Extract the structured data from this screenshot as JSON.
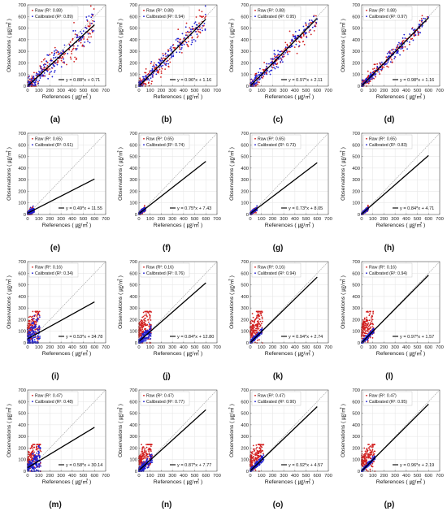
{
  "figure": {
    "style": {
      "raw_color": "#d21f1f",
      "calibrated_color": "#1f1fd2",
      "fit_line_color": "#000000",
      "identity_line_color": "#9a9a9a",
      "grid": true
    }
  },
  "chart_data": [
    {
      "panel_label": "(a)",
      "type": "scatter",
      "xlabel": "References ( ㎍/㎥ )",
      "ylabel": "Observations ( ㎍/㎥ )",
      "xlim": [
        0,
        700
      ],
      "ylim": [
        0,
        700
      ],
      "xticks": [
        0,
        100,
        200,
        300,
        400,
        500,
        600,
        700
      ],
      "yticks": [
        0,
        100,
        200,
        300,
        400,
        500,
        600,
        700
      ],
      "legend_position": "top-left",
      "series": [
        {
          "name": "Raw",
          "r2_label": "(R²: 0.88)",
          "r2": 0.88
        },
        {
          "name": "Calibrated",
          "r2_label": "(R²: 0.89)",
          "r2": 0.89
        }
      ],
      "fit": {
        "slope": 0.88,
        "intercept": 0.71,
        "label": "y = 0.88*x + 0.71"
      },
      "point_cloud": {
        "x_range": [
          0,
          600
        ],
        "spread": 90
      }
    },
    {
      "panel_label": "(b)",
      "type": "scatter",
      "xlabel": "References ( ㎍/㎥ )",
      "ylabel": "Observations ( ㎍/㎥ )",
      "xlim": [
        0,
        700
      ],
      "ylim": [
        0,
        700
      ],
      "xticks": [
        0,
        100,
        200,
        300,
        400,
        500,
        600,
        700
      ],
      "yticks": [
        0,
        100,
        200,
        300,
        400,
        500,
        600,
        700
      ],
      "legend_position": "top-left",
      "series": [
        {
          "name": "Raw",
          "r2_label": "(R²: 0.88)",
          "r2": 0.88
        },
        {
          "name": "Calibrated",
          "r2_label": "(R²: 0.94)",
          "r2": 0.94
        }
      ],
      "fit": {
        "slope": 0.96,
        "intercept": 1.16,
        "label": "y = 0.96*x + 1.16"
      },
      "point_cloud": {
        "x_range": [
          0,
          600
        ],
        "spread": 70
      }
    },
    {
      "panel_label": "(c)",
      "type": "scatter",
      "xlabel": "References ( ㎍/㎥ )",
      "ylabel": "Observations ( ㎍/㎥ )",
      "xlim": [
        0,
        700
      ],
      "ylim": [
        0,
        700
      ],
      "xticks": [
        0,
        100,
        200,
        300,
        400,
        500,
        600,
        700
      ],
      "yticks": [
        0,
        100,
        200,
        300,
        400,
        500,
        600,
        700
      ],
      "legend_position": "top-left",
      "series": [
        {
          "name": "Raw",
          "r2_label": "(R²: 0.88)",
          "r2": 0.88
        },
        {
          "name": "Calibrated",
          "r2_label": "(R²: 0.95)",
          "r2": 0.95
        }
      ],
      "fit": {
        "slope": 0.97,
        "intercept": 2.11,
        "label": "y = 0.97*x + 2.11"
      },
      "point_cloud": {
        "x_range": [
          0,
          600
        ],
        "spread": 65
      }
    },
    {
      "panel_label": "(d)",
      "type": "scatter",
      "xlabel": "References ( ㎍/㎥ )",
      "ylabel": "Observations ( ㎍/㎥ )",
      "xlim": [
        0,
        700
      ],
      "ylim": [
        0,
        700
      ],
      "xticks": [
        0,
        100,
        200,
        300,
        400,
        500,
        600,
        700
      ],
      "yticks": [
        0,
        100,
        200,
        300,
        400,
        500,
        600,
        700
      ],
      "legend_position": "top-left",
      "series": [
        {
          "name": "Raw",
          "r2_label": "(R²: 0.88)",
          "r2": 0.88
        },
        {
          "name": "Calibrated",
          "r2_label": "(R²: 0.97)",
          "r2": 0.97
        }
      ],
      "fit": {
        "slope": 0.98,
        "intercept": 1.16,
        "label": "y = 0.98*x + 1.16"
      },
      "point_cloud": {
        "x_range": [
          0,
          600
        ],
        "spread": 55
      }
    },
    {
      "panel_label": "(e)",
      "type": "scatter",
      "xlabel": "References ( ㎍/㎥ )",
      "ylabel": "Observations ( ㎍/㎥ )",
      "xlim": [
        0,
        700
      ],
      "ylim": [
        0,
        700
      ],
      "xticks": [
        0,
        100,
        200,
        300,
        400,
        500,
        600,
        700
      ],
      "yticks": [
        0,
        100,
        200,
        300,
        400,
        500,
        600,
        700
      ],
      "legend_position": "top-left",
      "series": [
        {
          "name": "Raw",
          "r2_label": "(R²: 0.65)",
          "r2": 0.65
        },
        {
          "name": "Calibrated",
          "r2_label": "(R²: 0.61)",
          "r2": 0.61
        }
      ],
      "fit": {
        "slope": 0.49,
        "intercept": 11.55,
        "label": "y = 0.49*x + 11.55"
      },
      "point_cloud": {
        "x_range": [
          0,
          60
        ],
        "spread": 15
      }
    },
    {
      "panel_label": "(f)",
      "type": "scatter",
      "xlabel": "References ( ㎍/㎥ )",
      "ylabel": "Observations ( ㎍/㎥ )",
      "xlim": [
        0,
        700
      ],
      "ylim": [
        0,
        700
      ],
      "xticks": [
        0,
        100,
        200,
        300,
        400,
        500,
        600,
        700
      ],
      "yticks": [
        0,
        100,
        200,
        300,
        400,
        500,
        600,
        700
      ],
      "legend_position": "top-left",
      "series": [
        {
          "name": "Raw",
          "r2_label": "(R²: 0.65)",
          "r2": 0.65
        },
        {
          "name": "Calibrated",
          "r2_label": "(R²: 0.74)",
          "r2": 0.74
        }
      ],
      "fit": {
        "slope": 0.75,
        "intercept": 7.43,
        "label": "y = 0.75*x + 7.43"
      },
      "point_cloud": {
        "x_range": [
          0,
          60
        ],
        "spread": 12
      }
    },
    {
      "panel_label": "(g)",
      "type": "scatter",
      "xlabel": "References ( ㎍/㎥ )",
      "ylabel": "Observations ( ㎍/㎥ )",
      "xlim": [
        0,
        700
      ],
      "ylim": [
        0,
        700
      ],
      "xticks": [
        0,
        100,
        200,
        300,
        400,
        500,
        600,
        700
      ],
      "yticks": [
        0,
        100,
        200,
        300,
        400,
        500,
        600,
        700
      ],
      "legend_position": "top-left",
      "series": [
        {
          "name": "Raw",
          "r2_label": "(R²: 0.65)",
          "r2": 0.65
        },
        {
          "name": "Calibrated",
          "r2_label": "(R²: 0.73)",
          "r2": 0.73
        }
      ],
      "fit": {
        "slope": 0.73,
        "intercept": 8.05,
        "label": "y = 0.73*x + 8.05"
      },
      "point_cloud": {
        "x_range": [
          0,
          60
        ],
        "spread": 12
      }
    },
    {
      "panel_label": "(h)",
      "type": "scatter",
      "xlabel": "References ( ㎍/㎥ )",
      "ylabel": "Observations ( ㎍/㎥ )",
      "xlim": [
        0,
        700
      ],
      "ylim": [
        0,
        700
      ],
      "xticks": [
        0,
        100,
        200,
        300,
        400,
        500,
        600,
        700
      ],
      "yticks": [
        0,
        100,
        200,
        300,
        400,
        500,
        600,
        700
      ],
      "legend_position": "top-left",
      "series": [
        {
          "name": "Raw",
          "r2_label": "(R²: 0.65)",
          "r2": 0.65
        },
        {
          "name": "Calibrated",
          "r2_label": "(R²: 0.83)",
          "r2": 0.83
        }
      ],
      "fit": {
        "slope": 0.84,
        "intercept": 4.71,
        "label": "y = 0.84*x + 4.71"
      },
      "point_cloud": {
        "x_range": [
          0,
          60
        ],
        "spread": 10
      }
    },
    {
      "panel_label": "(i)",
      "type": "scatter",
      "xlabel": "References ( ㎍/㎥ )",
      "ylabel": "Observations ( ㎍/㎥ )",
      "xlim": [
        0,
        700
      ],
      "ylim": [
        0,
        700
      ],
      "xticks": [
        0,
        100,
        200,
        300,
        400,
        500,
        600,
        700
      ],
      "yticks": [
        0,
        100,
        200,
        300,
        400,
        500,
        600,
        700
      ],
      "legend_position": "top-left",
      "series": [
        {
          "name": "Raw",
          "r2_label": "(R²: 0.16)",
          "r2": 0.16
        },
        {
          "name": "Calibrated",
          "r2_label": "(R²: 0.34)",
          "r2": 0.34
        }
      ],
      "fit": {
        "slope": 0.53,
        "intercept": 34.78,
        "label": "y = 0.53*x + 34.78"
      },
      "point_cloud": {
        "x_range": [
          0,
          110
        ],
        "spread": 80,
        "raw_max_y": 270
      }
    },
    {
      "panel_label": "(j)",
      "type": "scatter",
      "xlabel": "References ( ㎍/㎥ )",
      "ylabel": "Observations ( ㎍/㎥ )",
      "xlim": [
        0,
        700
      ],
      "ylim": [
        0,
        700
      ],
      "xticks": [
        0,
        100,
        200,
        300,
        400,
        500,
        600,
        700
      ],
      "yticks": [
        0,
        100,
        200,
        300,
        400,
        500,
        600,
        700
      ],
      "legend_position": "top-left",
      "series": [
        {
          "name": "Raw",
          "r2_label": "(R²: 0.16)",
          "r2": 0.16
        },
        {
          "name": "Calibrated",
          "r2_label": "(R²: 0.76)",
          "r2": 0.76
        }
      ],
      "fit": {
        "slope": 0.84,
        "intercept": 12.8,
        "label": "y = 0.84*x + 12.80"
      },
      "point_cloud": {
        "x_range": [
          0,
          110
        ],
        "spread": 40,
        "raw_max_y": 270
      }
    },
    {
      "panel_label": "(k)",
      "type": "scatter",
      "xlabel": "References ( ㎍/㎥ )",
      "ylabel": "Observations ( ㎍/㎥ )",
      "xlim": [
        0,
        700
      ],
      "ylim": [
        0,
        700
      ],
      "xticks": [
        0,
        100,
        200,
        300,
        400,
        500,
        600,
        700
      ],
      "yticks": [
        0,
        100,
        200,
        300,
        400,
        500,
        600,
        700
      ],
      "legend_position": "top-left",
      "series": [
        {
          "name": "Raw",
          "r2_label": "(R²: 0.16)",
          "r2": 0.16
        },
        {
          "name": "Calibrated",
          "r2_label": "(R²: 0.94)",
          "r2": 0.94
        }
      ],
      "fit": {
        "slope": 0.94,
        "intercept": 2.74,
        "label": "y = 0.94*x + 2.74"
      },
      "point_cloud": {
        "x_range": [
          0,
          110
        ],
        "spread": 20,
        "raw_max_y": 270
      }
    },
    {
      "panel_label": "(l)",
      "type": "scatter",
      "xlabel": "References ( ㎍/㎥ )",
      "ylabel": "Observations ( ㎍/㎥ )",
      "xlim": [
        0,
        700
      ],
      "ylim": [
        0,
        700
      ],
      "xticks": [
        0,
        100,
        200,
        300,
        400,
        500,
        600,
        700
      ],
      "yticks": [
        0,
        100,
        200,
        300,
        400,
        500,
        600,
        700
      ],
      "legend_position": "top-left",
      "series": [
        {
          "name": "Raw",
          "r2_label": "(R²: 0.16)",
          "r2": 0.16
        },
        {
          "name": "Calibrated",
          "r2_label": "(R²: 0.94)",
          "r2": 0.94
        }
      ],
      "fit": {
        "slope": 0.97,
        "intercept": 1.57,
        "label": "y = 0.97*x + 1.57"
      },
      "point_cloud": {
        "x_range": [
          0,
          110
        ],
        "spread": 20,
        "raw_max_y": 270
      }
    },
    {
      "panel_label": "(m)",
      "type": "scatter",
      "xlabel": "References ( ㎍/㎥ )",
      "ylabel": "Observations ( ㎍/㎥ )",
      "xlim": [
        0,
        700
      ],
      "ylim": [
        0,
        700
      ],
      "xticks": [
        0,
        100,
        200,
        300,
        400,
        500,
        600,
        700
      ],
      "yticks": [
        0,
        100,
        200,
        300,
        400,
        500,
        600,
        700
      ],
      "legend_position": "top-left",
      "series": [
        {
          "name": "Raw",
          "r2_label": "(R²: 0.47)",
          "r2": 0.47
        },
        {
          "name": "Calibrated",
          "r2_label": "(R²: 0.48)",
          "r2": 0.48
        }
      ],
      "fit": {
        "slope": 0.58,
        "intercept": 30.14,
        "label": "y = 0.58*x + 30.14"
      },
      "point_cloud": {
        "x_range": [
          0,
          120
        ],
        "spread": 60,
        "raw_max_y": 230
      }
    },
    {
      "panel_label": "(n)",
      "type": "scatter",
      "xlabel": "References ( ㎍/㎥ )",
      "ylabel": "Observations ( ㎍/㎥ )",
      "xlim": [
        0,
        700
      ],
      "ylim": [
        0,
        700
      ],
      "xticks": [
        0,
        100,
        200,
        300,
        400,
        500,
        600,
        700
      ],
      "yticks": [
        0,
        100,
        200,
        300,
        400,
        500,
        600,
        700
      ],
      "legend_position": "top-left",
      "series": [
        {
          "name": "Raw",
          "r2_label": "(R²: 0.47)",
          "r2": 0.47
        },
        {
          "name": "Calibrated",
          "r2_label": "(R²: 0.77)",
          "r2": 0.77
        }
      ],
      "fit": {
        "slope": 0.87,
        "intercept": 7.77,
        "label": "y = 0.87*x + 7.77"
      },
      "point_cloud": {
        "x_range": [
          0,
          120
        ],
        "spread": 35,
        "raw_max_y": 230
      }
    },
    {
      "panel_label": "(o)",
      "type": "scatter",
      "xlabel": "References ( ㎍/㎥ )",
      "ylabel": "Observations ( ㎍/㎥ )",
      "xlim": [
        0,
        700
      ],
      "ylim": [
        0,
        700
      ],
      "xticks": [
        0,
        100,
        200,
        300,
        400,
        500,
        600,
        700
      ],
      "yticks": [
        0,
        100,
        200,
        300,
        400,
        500,
        600,
        700
      ],
      "legend_position": "top-left",
      "series": [
        {
          "name": "Raw",
          "r2_label": "(R²: 0.47)",
          "r2": 0.47
        },
        {
          "name": "Calibrated",
          "r2_label": "(R²: 0.90)",
          "r2": 0.9
        }
      ],
      "fit": {
        "slope": 0.92,
        "intercept": 4.57,
        "label": "y = 0.92*x + 4.57"
      },
      "point_cloud": {
        "x_range": [
          0,
          120
        ],
        "spread": 22,
        "raw_max_y": 230
      }
    },
    {
      "panel_label": "(p)",
      "type": "scatter",
      "xlabel": "References ( ㎍/㎥ )",
      "ylabel": "Observations ( ㎍/㎥ )",
      "xlim": [
        0,
        700
      ],
      "ylim": [
        0,
        700
      ],
      "xticks": [
        0,
        100,
        200,
        300,
        400,
        500,
        600,
        700
      ],
      "yticks": [
        0,
        100,
        200,
        300,
        400,
        500,
        600,
        700
      ],
      "legend_position": "top-left",
      "series": [
        {
          "name": "Raw",
          "r2_label": "(R²: 0.47)",
          "r2": 0.47
        },
        {
          "name": "Calibrated",
          "r2_label": "(R²: 0.95)",
          "r2": 0.95
        }
      ],
      "fit": {
        "slope": 0.96,
        "intercept": 2.19,
        "label": "y = 0.96*x + 2.19"
      },
      "point_cloud": {
        "x_range": [
          0,
          120
        ],
        "spread": 15,
        "raw_max_y": 230
      }
    }
  ]
}
